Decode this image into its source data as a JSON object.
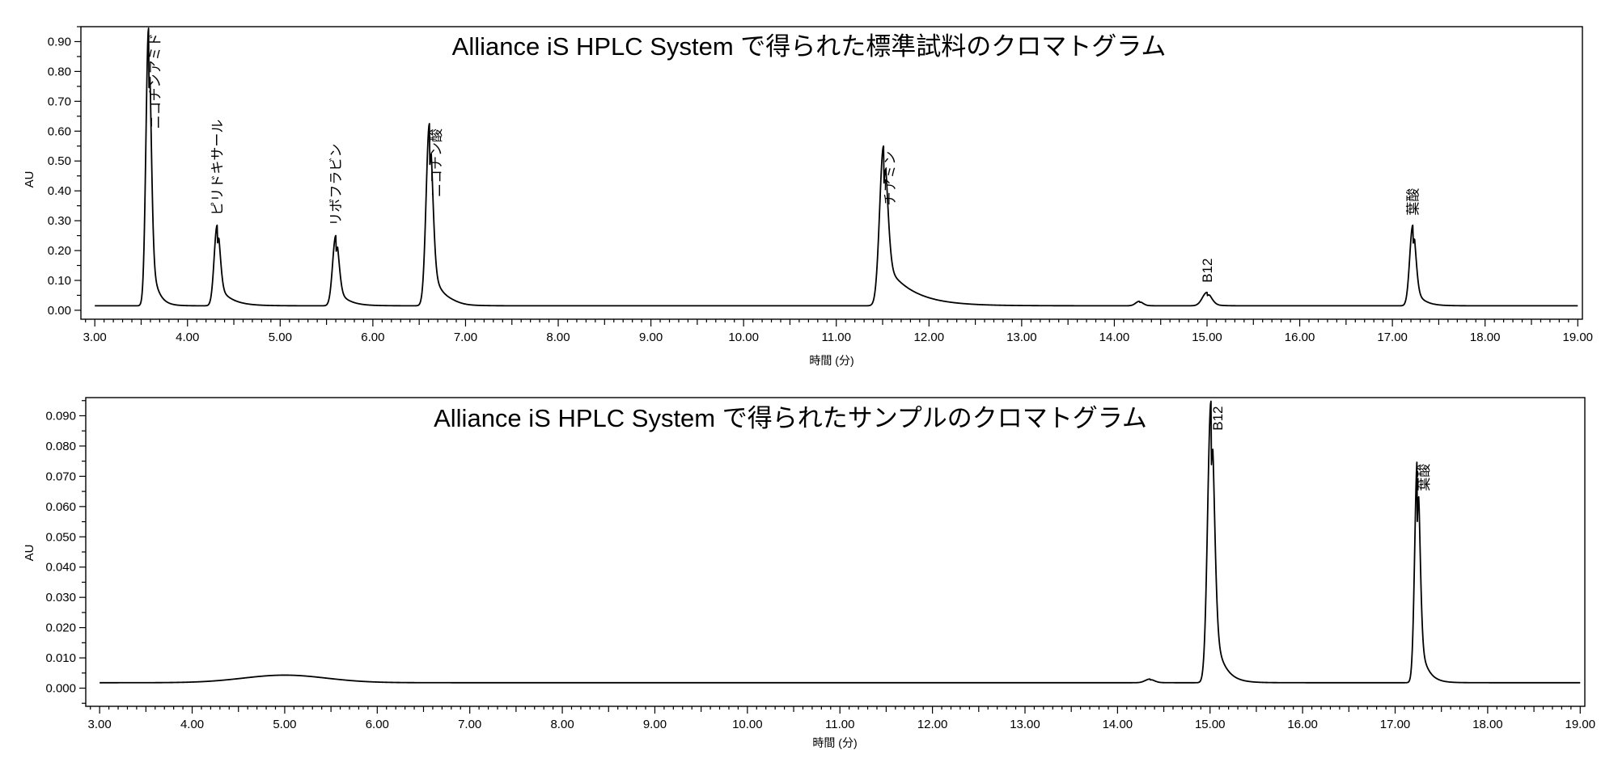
{
  "chart_data": [
    {
      "type": "line",
      "title": "Alliance iS HPLC System で得られた標準試料のクロマトグラム",
      "xlabel": "時間 (分)",
      "ylabel": "AU",
      "xlim": [
        2.85,
        19.05
      ],
      "ylim": [
        -0.03,
        0.95
      ],
      "xticks": [
        3,
        4,
        5,
        6,
        7,
        8,
        9,
        10,
        11,
        12,
        13,
        14,
        15,
        16,
        17,
        18,
        19
      ],
      "xtick_labels": [
        "3.00",
        "4.00",
        "5.00",
        "6.00",
        "7.00",
        "8.00",
        "9.00",
        "10.00",
        "11.00",
        "12.00",
        "13.00",
        "14.00",
        "15.00",
        "16.00",
        "17.00",
        "18.00",
        "19.00"
      ],
      "yticks": [
        0,
        0.1,
        0.2,
        0.3,
        0.4,
        0.5,
        0.6,
        0.7,
        0.8,
        0.9
      ],
      "ytick_labels": [
        "0.00",
        "0.10",
        "0.20",
        "0.30",
        "0.40",
        "0.50",
        "0.60",
        "0.70",
        "0.80",
        "0.90"
      ],
      "baseline": 0.015,
      "peaks": [
        {
          "label": "ニコチンアミド",
          "rt": 3.58,
          "height": 0.93,
          "sigma": 0.028,
          "tail": 0.03
        },
        {
          "label": "ピリドキサール",
          "rt": 4.32,
          "height": 0.27,
          "sigma": 0.032,
          "tail": 0.06
        },
        {
          "label": "リボフラビン",
          "rt": 5.6,
          "height": 0.235,
          "sigma": 0.034,
          "tail": 0.05
        },
        {
          "label": "ニコチン酸",
          "rt": 6.61,
          "height": 0.61,
          "sigma": 0.035,
          "tail": 0.05
        },
        {
          "label": "",
          "rt": 6.85,
          "height": 0.004,
          "sigma": 0.08,
          "tail": 0.0
        },
        {
          "label": "チアミン",
          "rt": 11.51,
          "height": 0.535,
          "sigma": 0.042,
          "tail": 0.13
        },
        {
          "label": "",
          "rt": 14.27,
          "height": 0.015,
          "sigma": 0.04,
          "tail": 0.02
        },
        {
          "label": "B12",
          "rt": 15.0,
          "height": 0.045,
          "sigma": 0.05,
          "tail": 0.03
        },
        {
          "label": "葉酸",
          "rt": 17.22,
          "height": 0.27,
          "sigma": 0.033,
          "tail": 0.04
        }
      ]
    },
    {
      "type": "line",
      "title": "Alliance iS HPLC System で得られたサンプルのクロマトグラム",
      "xlabel": "時間 (分)",
      "ylabel": "AU",
      "xlim": [
        2.85,
        19.05
      ],
      "ylim": [
        -0.006,
        0.096
      ],
      "xticks": [
        3,
        4,
        5,
        6,
        7,
        8,
        9,
        10,
        11,
        12,
        13,
        14,
        15,
        16,
        17,
        18,
        19
      ],
      "xtick_labels": [
        "3.00",
        "4.00",
        "5.00",
        "6.00",
        "7.00",
        "8.00",
        "9.00",
        "10.00",
        "11.00",
        "12.00",
        "13.00",
        "14.00",
        "15.00",
        "16.00",
        "17.00",
        "18.00",
        "19.00"
      ],
      "yticks": [
        0,
        0.01,
        0.02,
        0.03,
        0.04,
        0.05,
        0.06,
        0.07,
        0.08,
        0.09
      ],
      "ytick_labels": [
        "0.000",
        "0.010",
        "0.020",
        "0.030",
        "0.040",
        "0.050",
        "0.060",
        "0.070",
        "0.080",
        "0.090"
      ],
      "baseline": 0.0018,
      "peaks": [
        {
          "label": "",
          "rt": 5.0,
          "height": 0.0025,
          "sigma": 0.45,
          "tail": 0.0
        },
        {
          "label": "",
          "rt": 14.35,
          "height": 0.0012,
          "sigma": 0.05,
          "tail": 0.02
        },
        {
          "label": "B12",
          "rt": 15.01,
          "height": 0.093,
          "sigma": 0.036,
          "tail": 0.045
        },
        {
          "label": "葉酸",
          "rt": 17.24,
          "height": 0.074,
          "sigma": 0.028,
          "tail": 0.035
        }
      ]
    }
  ]
}
